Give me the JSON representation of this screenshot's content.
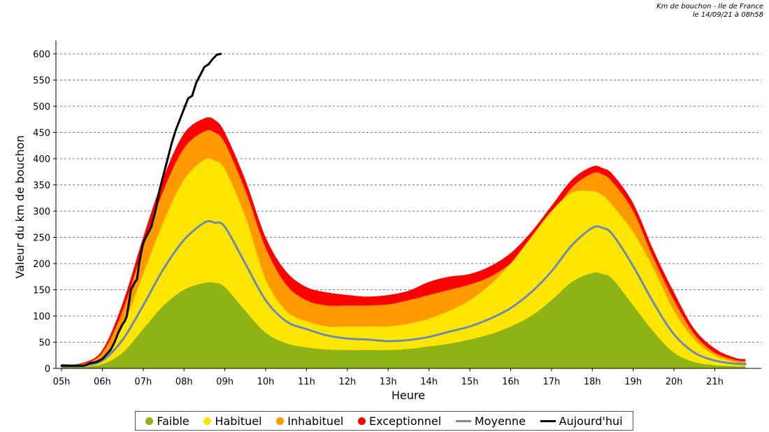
{
  "header": {
    "line1": "Km de bouchon - Ile de France",
    "line2": "le 14/09/21 à 08h58"
  },
  "colors": {
    "faible": "#8db414",
    "habituel": "#ffe600",
    "inhabituel": "#ff9900",
    "exceptionnel": "#ff0000",
    "moyenne": "#6b8bb5",
    "aujourdhui": "#000000"
  },
  "chart_data": {
    "type": "area",
    "title": "Km de bouchon - Ile de France",
    "xlabel": "Heure",
    "ylabel": "Valeur du  km de bouchon",
    "ylim": [
      0,
      600
    ],
    "xlim": [
      5.0,
      21.95
    ],
    "yticks": [
      0,
      50,
      100,
      150,
      200,
      250,
      300,
      350,
      400,
      450,
      500,
      550,
      600
    ],
    "xticks": [
      {
        "v": 5,
        "label": "05h"
      },
      {
        "v": 6,
        "label": "06h"
      },
      {
        "v": 7,
        "label": "07h"
      },
      {
        "v": 8,
        "label": "08h"
      },
      {
        "v": 9,
        "label": "09h"
      },
      {
        "v": 10,
        "label": "10h"
      },
      {
        "v": 11,
        "label": "11h"
      },
      {
        "v": 12,
        "label": "12h"
      },
      {
        "v": 13,
        "label": "13h"
      },
      {
        "v": 14,
        "label": "14h"
      },
      {
        "v": 15,
        "label": "15h"
      },
      {
        "v": 16,
        "label": "16h"
      },
      {
        "v": 17,
        "label": "17h"
      },
      {
        "v": 18,
        "label": "18h"
      },
      {
        "v": 19,
        "label": "19h"
      },
      {
        "v": 20,
        "label": "20h"
      },
      {
        "v": 21,
        "label": "21h"
      }
    ],
    "x": [
      5.0,
      5.5,
      6.0,
      6.5,
      7.0,
      7.5,
      8.0,
      8.5,
      8.75,
      9.0,
      9.5,
      10.0,
      10.5,
      11.0,
      11.5,
      12.0,
      12.5,
      13.0,
      13.5,
      14.0,
      14.5,
      15.0,
      15.5,
      16.0,
      16.5,
      17.0,
      17.5,
      18.0,
      18.25,
      18.5,
      19.0,
      19.5,
      20.0,
      20.5,
      21.0,
      21.5,
      21.75
    ],
    "grid": true,
    "legend_position": "bottom",
    "series": [
      {
        "name": "Faible",
        "kind": "band",
        "color_key": "faible",
        "values": [
          3,
          3,
          8,
          30,
          75,
          120,
          150,
          163,
          163,
          155,
          110,
          68,
          48,
          40,
          36,
          35,
          35,
          35,
          37,
          42,
          47,
          55,
          65,
          80,
          100,
          130,
          165,
          182,
          180,
          170,
          120,
          70,
          30,
          12,
          6,
          4,
          4
        ]
      },
      {
        "name": "Habituel",
        "kind": "band",
        "color_key": "habituel",
        "values": [
          5,
          6,
          20,
          80,
          180,
          280,
          360,
          398,
          396,
          380,
          290,
          170,
          110,
          90,
          80,
          80,
          80,
          80,
          85,
          95,
          110,
          130,
          160,
          200,
          250,
          300,
          335,
          338,
          330,
          310,
          260,
          190,
          110,
          55,
          25,
          12,
          10
        ]
      },
      {
        "name": "Inhabituel",
        "kind": "band",
        "color_key": "inhabituel",
        "values": [
          6,
          8,
          30,
          110,
          230,
          340,
          420,
          452,
          450,
          430,
          340,
          230,
          160,
          130,
          120,
          120,
          120,
          122,
          130,
          140,
          150,
          160,
          175,
          200,
          235,
          290,
          345,
          372,
          370,
          355,
          300,
          210,
          130,
          65,
          30,
          16,
          14
        ]
      },
      {
        "name": "Exceptionnel",
        "kind": "band",
        "color_key": "exceptionnel",
        "values": [
          8,
          10,
          35,
          125,
          250,
          365,
          448,
          477,
          474,
          450,
          360,
          250,
          185,
          155,
          145,
          140,
          137,
          140,
          148,
          165,
          175,
          180,
          195,
          220,
          260,
          310,
          360,
          385,
          382,
          370,
          315,
          225,
          145,
          75,
          38,
          20,
          18
        ]
      },
      {
        "name": "Moyenne",
        "kind": "line",
        "color_key": "moyenne",
        "values": [
          4,
          5,
          15,
          55,
          120,
          190,
          245,
          278,
          278,
          270,
          200,
          130,
          90,
          75,
          63,
          57,
          55,
          52,
          54,
          60,
          70,
          80,
          95,
          115,
          145,
          185,
          235,
          268,
          268,
          255,
          195,
          125,
          65,
          30,
          15,
          9,
          8
        ]
      },
      {
        "name": "Aujourd'hui",
        "kind": "line",
        "color_key": "aujourdhui",
        "x": [
          5.0,
          5.3,
          5.55,
          5.7,
          5.85,
          6.0,
          6.2,
          6.3,
          6.4,
          6.5,
          6.55,
          6.6,
          6.7,
          6.8,
          6.85,
          6.9,
          7.0,
          7.1,
          7.2,
          7.3,
          7.4,
          7.5,
          7.6,
          7.7,
          7.8,
          7.9,
          8.0,
          8.1,
          8.2,
          8.3,
          8.4,
          8.5,
          8.6,
          8.7,
          8.8,
          8.9
        ],
        "values": [
          5,
          5,
          5,
          10,
          12,
          18,
          35,
          50,
          70,
          85,
          90,
          100,
          150,
          165,
          170,
          200,
          240,
          255,
          270,
          300,
          340,
          370,
          400,
          430,
          455,
          475,
          495,
          515,
          520,
          545,
          560,
          575,
          580,
          590,
          598,
          600
        ]
      }
    ]
  },
  "legend": {
    "items": [
      {
        "label": "Faible",
        "color_key": "faible",
        "shape": "dot"
      },
      {
        "label": "Habituel",
        "color_key": "habituel",
        "shape": "dot"
      },
      {
        "label": "Inhabituel",
        "color_key": "inhabituel",
        "shape": "dot"
      },
      {
        "label": "Exceptionnel",
        "color_key": "exceptionnel",
        "shape": "dot"
      },
      {
        "label": "Moyenne",
        "color_key": "moyenne",
        "shape": "line"
      },
      {
        "label": "Aujourd'hui",
        "color_key": "aujourdhui",
        "shape": "line"
      }
    ]
  }
}
